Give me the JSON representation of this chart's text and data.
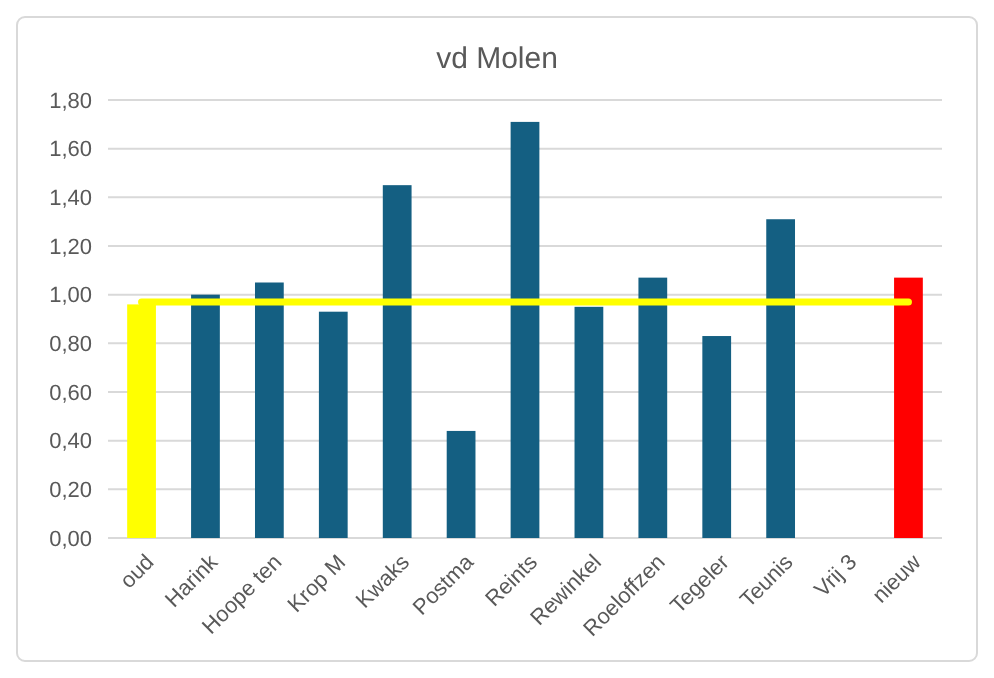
{
  "chart_data": {
    "type": "bar",
    "title": "vd Molen",
    "categories": [
      "oud",
      "Harink",
      "Hoope ten",
      "Krop M",
      "Kwaks",
      "Postma",
      "Reints",
      "Rewinkel",
      "Roeloffzen",
      "Tegeler",
      "Teunis",
      "Vrij 3",
      "nieuw"
    ],
    "series": [
      {
        "colors": [
          "#ffff00",
          "#145f82",
          "#145f82",
          "#145f82",
          "#145f82",
          "#145f82",
          "#145f82",
          "#145f82",
          "#145f82",
          "#145f82",
          "#145f82",
          null,
          "#ff0000"
        ],
        "values": [
          0.96,
          1.0,
          1.05,
          0.93,
          1.45,
          0.44,
          1.71,
          0.95,
          1.07,
          0.83,
          1.31,
          null,
          1.07
        ]
      },
      {
        "type": "line",
        "color": "#ffff00",
        "values": [
          0.97,
          0.97,
          0.97,
          0.97,
          0.97,
          0.97,
          0.97,
          0.97,
          0.97,
          0.97,
          0.97,
          0.97,
          0.97
        ]
      }
    ],
    "ylim": [
      0,
      1.8
    ],
    "yticks": [
      {
        "value": 0,
        "label": "0,00"
      },
      {
        "value": 0.2,
        "label": "0,20"
      },
      {
        "value": 0.4,
        "label": "0,40"
      },
      {
        "value": 0.6,
        "label": "0,60"
      },
      {
        "value": 0.8,
        "label": "0,80"
      },
      {
        "value": 1.0,
        "label": "1,00"
      },
      {
        "value": 1.2,
        "label": "1,20"
      },
      {
        "value": 1.4,
        "label": "1,40"
      },
      {
        "value": 1.6,
        "label": "1,60"
      },
      {
        "value": 1.8,
        "label": "1,80"
      }
    ],
    "grid": "y",
    "marker": "none",
    "line_style": "solid"
  }
}
